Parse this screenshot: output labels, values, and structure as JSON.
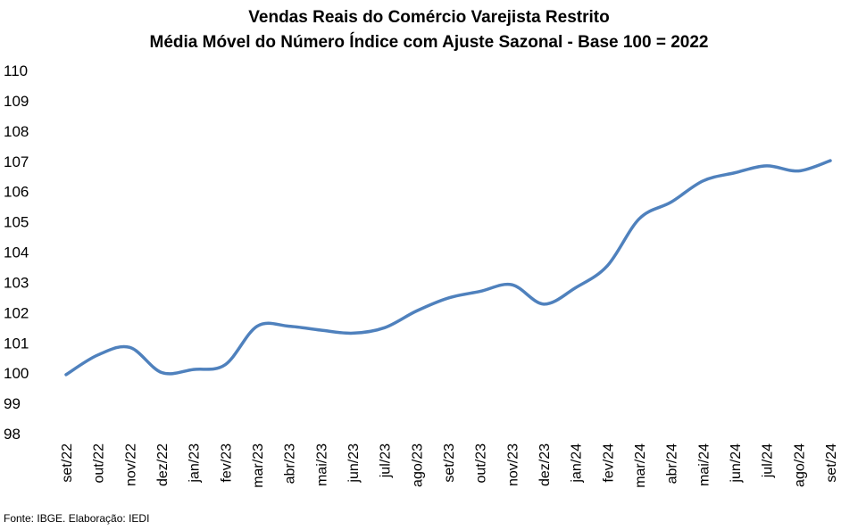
{
  "chart_data": {
    "type": "line",
    "title": "Vendas Reais do Comércio Varejista Restrito",
    "subtitle": "Média Móvel do Número Índice com Ajuste Sazonal - Base 100 = 2022",
    "xlabel": "",
    "ylabel": "",
    "ylim": [
      98,
      110
    ],
    "yticks": [
      "98",
      "99",
      "100",
      "101",
      "102",
      "103",
      "104",
      "105",
      "106",
      "107",
      "108",
      "109",
      "110"
    ],
    "grid": false,
    "legend": "none",
    "categories": [
      "set/22",
      "out/22",
      "nov/22",
      "dez/22",
      "jan/23",
      "fev/23",
      "mar/23",
      "abr/23",
      "mai/23",
      "jun/23",
      "jul/23",
      "ago/23",
      "set/23",
      "out/23",
      "nov/23",
      "dez/23",
      "jan/24",
      "fev/24",
      "mar/24",
      "abr/24",
      "mai/24",
      "jun/24",
      "jul/24",
      "ago/24",
      "set/24"
    ],
    "series": [
      {
        "values": [
          99.95,
          100.6,
          100.85,
          100.02,
          100.12,
          100.28,
          101.55,
          101.55,
          101.42,
          101.32,
          101.5,
          102.05,
          102.48,
          102.7,
          102.92,
          102.28,
          102.82,
          103.55,
          105.1,
          105.65,
          106.35,
          106.62,
          106.85,
          106.68,
          107.02
        ],
        "color": "#4f81bd"
      }
    ],
    "footer": "Fonte: IBGE. Elaboração: IEDI"
  }
}
